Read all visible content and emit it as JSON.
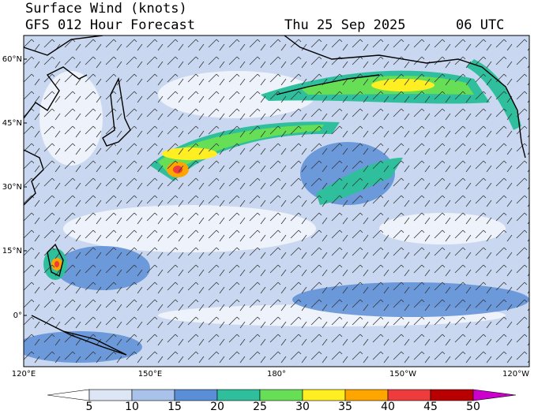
{
  "header": {
    "title": "Surface Wind (knots)",
    "subtitle": "GFS 012 Hour Forecast",
    "date": "Thu 25 Sep 2025",
    "time": "06 UTC"
  },
  "map": {
    "lat_labels": [
      "60°N",
      "45°N",
      "30°N",
      "15°N",
      "0°"
    ],
    "lon_labels": [
      "120°E",
      "150°E",
      "180°",
      "150°W",
      "120°W"
    ]
  },
  "colorbar": {
    "levels": [
      5,
      10,
      15,
      20,
      25,
      30,
      35,
      40,
      45,
      50
    ],
    "colors": [
      "#ffffff",
      "#dde6f4",
      "#a8c2ea",
      "#5a8ed6",
      "#2fbf9c",
      "#66de55",
      "#ffee22",
      "#ffa500",
      "#ee3b3b",
      "#b80000",
      "#cc00cc"
    ]
  }
}
